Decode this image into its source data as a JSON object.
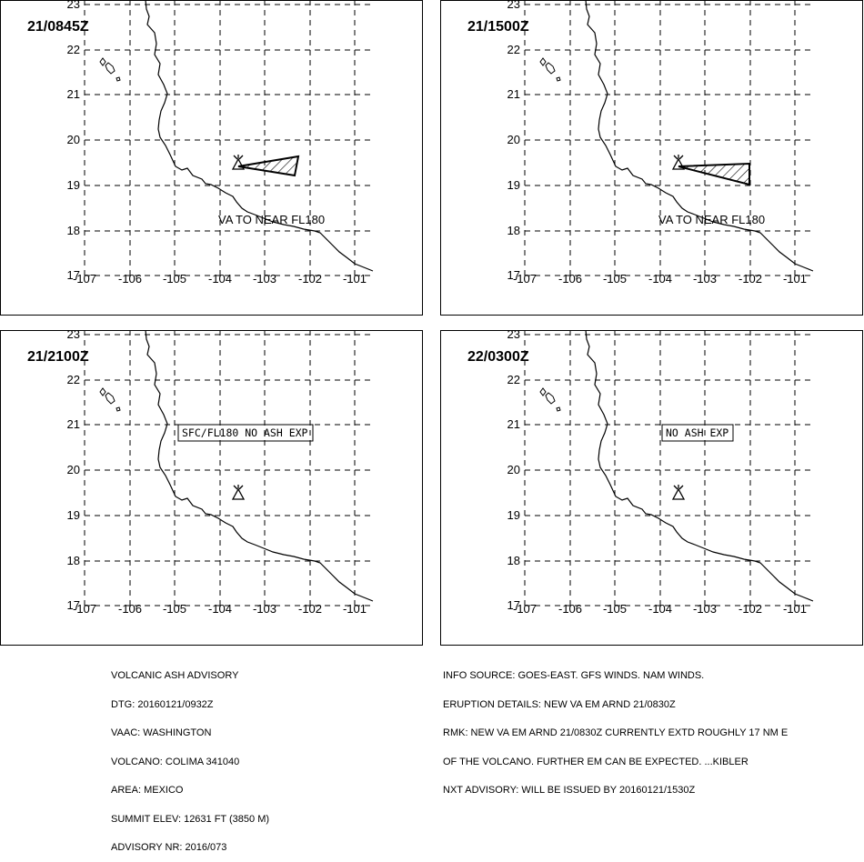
{
  "panels": [
    {
      "time_label": "21/0845Z",
      "text": "VA TO NEAR FL180",
      "text_boxed": false,
      "ash_polygon": true
    },
    {
      "time_label": "21/1500Z",
      "text": "VA TO NEAR FL180",
      "text_boxed": false,
      "ash_polygon": true
    },
    {
      "time_label": "21/2100Z",
      "text": "SFC/FL180 NO ASH EXP",
      "text_boxed": true,
      "ash_polygon": false
    },
    {
      "time_label": "22/0300Z",
      "text": "NO ASH EXP",
      "text_boxed": true,
      "ash_polygon": false
    }
  ],
  "axes": {
    "lat_labels": [
      "23",
      "22",
      "21",
      "20",
      "19",
      "18",
      "17"
    ],
    "lon_labels": [
      "-107",
      "-106",
      "-105",
      "-104",
      "-103",
      "-102",
      "-101"
    ]
  },
  "volcano_icon": "volcano-triangle-icon",
  "advisory_left": [
    "VOLCANIC ASH ADVISORY",
    "DTG: 20160121/0932Z",
    "VAAC: WASHINGTON",
    "VOLCANO: COLIMA 341040",
    "AREA: MEXICO",
    "SUMMIT ELEV: 12631 FT (3850 M)",
    "ADVISORY NR: 2016/073"
  ],
  "advisory_right": [
    "INFO SOURCE: GOES-EAST. GFS WINDS. NAM WINDS.",
    "ERUPTION DETAILS: NEW VA EM ARND 21/0830Z",
    "RMK: NEW VA EM ARND 21/0830Z CURRENTLY EXTD ROUGHLY 17 NM E",
    "OF THE VOLCANO. FURTHER EM CAN BE EXPECTED. ...KIBLER",
    "NXT ADVISORY: WILL BE ISSUED BY 20160121/1530Z"
  ]
}
